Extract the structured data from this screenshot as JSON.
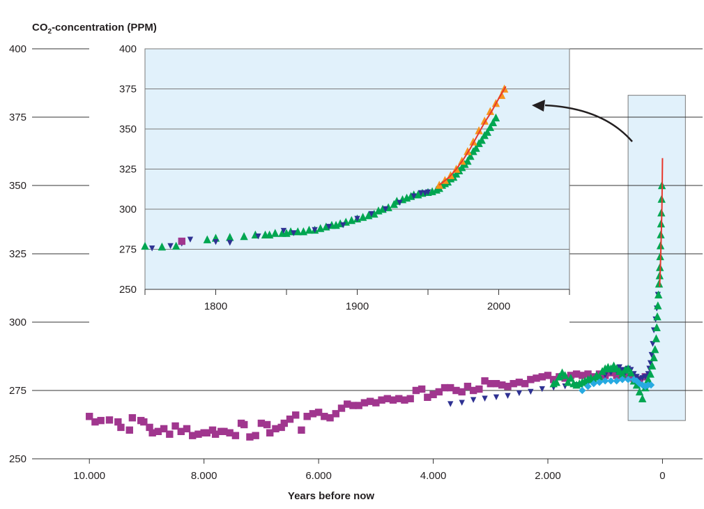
{
  "chart_data": [
    {
      "id": "main",
      "type": "scatter",
      "title_prefix": "CO",
      "title_sub": "2",
      "title_suffix": "-concentration (PPM)",
      "xlabel": "Years before now",
      "xlim": [
        11000,
        -700
      ],
      "ylim": [
        250,
        400
      ],
      "x_ticks": [
        10000,
        8000,
        6000,
        4000,
        2000,
        0
      ],
      "x_tick_labels": [
        "10.000",
        "8.000",
        "6.000",
        "4.000",
        "2.000",
        "0"
      ],
      "y_ticks": [
        250,
        275,
        300,
        325,
        350,
        375,
        400
      ],
      "grid": true,
      "highlight_region": {
        "x": [
          600,
          -400
        ],
        "y": [
          264,
          383
        ]
      },
      "series": [
        {
          "marker": "square",
          "color": "#a0368e",
          "x": [
            10000,
            9900,
            9800,
            9650,
            9500,
            9450,
            9300,
            9250,
            9100,
            9050,
            8950,
            8900,
            8800,
            8700,
            8600,
            8500,
            8400,
            8300,
            8200,
            8100,
            8000,
            7950,
            7850,
            7800,
            7700,
            7650,
            7550,
            7450,
            7350,
            7300,
            7200,
            7100,
            7000,
            6900,
            6850,
            6750,
            6650,
            6600,
            6500,
            6400,
            6300,
            6200,
            6100,
            6000,
            5900,
            5800,
            5700,
            5600,
            5500,
            5400,
            5300,
            5200,
            5100,
            5000,
            4900,
            4800,
            4700,
            4600,
            4500,
            4400,
            4300,
            4200,
            4100,
            4000,
            3900,
            3800,
            3700,
            3600,
            3500,
            3400,
            3300,
            3200,
            3100,
            3000,
            2900,
            2800,
            2700,
            2600,
            2500,
            2400,
            2300,
            2200,
            2100,
            2000,
            1900,
            1800,
            1700,
            1600,
            1500,
            1400,
            1300,
            1200,
            1100,
            1000,
            900,
            800,
            700,
            600,
            500,
            400,
            300
          ],
          "y": [
            265.5,
            263.5,
            264,
            264.2,
            263.5,
            261.5,
            260.5,
            265,
            264,
            263.5,
            261.5,
            259.5,
            260,
            261,
            259,
            262,
            260,
            261,
            258.5,
            259,
            259.5,
            259.5,
            260.5,
            259,
            260,
            260,
            259.5,
            258.5,
            263,
            262.5,
            258,
            258.5,
            263,
            262.5,
            259.5,
            261,
            261.5,
            263,
            264.5,
            266,
            260.5,
            265.5,
            266.5,
            267,
            265.5,
            265,
            266.5,
            268.5,
            270,
            269.5,
            269.5,
            270.5,
            271,
            270.5,
            271.5,
            272,
            271.5,
            272,
            271.5,
            272,
            275,
            275.5,
            272.5,
            273.5,
            274.5,
            276,
            276,
            275,
            274.5,
            276.5,
            275,
            275.5,
            278.5,
            277.5,
            277.5,
            277,
            276.5,
            277.5,
            278,
            277.5,
            279,
            279.5,
            280,
            280.5,
            279,
            280,
            279.5,
            280.5,
            281,
            280.5,
            281,
            280,
            281,
            280.5,
            281.5,
            280.5,
            281.5,
            280,
            279.5,
            279,
            280
          ]
        },
        {
          "marker": "triangle-down",
          "color": "#2e3192",
          "x": [
            3700,
            3500,
            3300,
            3100,
            2900,
            2700,
            2500,
            2300,
            2100,
            1900,
            1700,
            1500,
            1300,
            1200,
            1100,
            1000,
            900,
            850,
            800,
            750,
            700,
            650,
            600,
            550,
            500,
            450,
            400,
            350,
            300,
            250,
            230,
            210,
            190,
            170,
            150,
            120,
            100,
            80
          ],
          "y": [
            270,
            270.5,
            271.5,
            272,
            272.5,
            273,
            274,
            274.5,
            275.5,
            276,
            276.5,
            277,
            277.5,
            278.5,
            279,
            280.5,
            281.5,
            283,
            282,
            283.5,
            282.5,
            281.5,
            283,
            282.5,
            281,
            280,
            279,
            279.5,
            280,
            281,
            283,
            285,
            288,
            292,
            297,
            301,
            305,
            310
          ]
        },
        {
          "marker": "triangle-up",
          "color": "#00a651",
          "x": [
            1900,
            1850,
            1800,
            1750,
            1700,
            1650,
            1600,
            1550,
            1500,
            1450,
            1400,
            1350,
            1300,
            1250,
            1200,
            1150,
            1100,
            1050,
            1000,
            950,
            900,
            850,
            800,
            750,
            700,
            650,
            600,
            550,
            500,
            450,
            400,
            350,
            300,
            250,
            210,
            180,
            150,
            130,
            110,
            100,
            90,
            80,
            70,
            60,
            50,
            45,
            40,
            35,
            30,
            25,
            20,
            15,
            10
          ],
          "y": [
            277.5,
            278,
            280,
            281.5,
            280.5,
            278,
            279.5,
            277.5,
            277,
            277.5,
            278,
            278.5,
            279,
            279.5,
            279,
            280.5,
            280,
            282,
            283,
            283.5,
            283,
            284,
            283,
            282,
            281,
            282.5,
            283,
            281.5,
            278.5,
            277,
            274.5,
            272,
            276,
            279,
            281,
            284,
            287,
            290,
            294,
            298,
            302,
            306,
            310,
            314,
            317,
            320,
            324,
            328,
            332,
            336,
            340,
            345,
            350
          ]
        },
        {
          "marker": "diamond",
          "color": "#27aae1",
          "x": [
            1400,
            1300,
            1200,
            1100,
            1000,
            900,
            800,
            700,
            600,
            500,
            450,
            400,
            350,
            300,
            250,
            200
          ],
          "y": [
            275,
            276.5,
            277.5,
            278,
            278.5,
            278.5,
            278.5,
            279,
            279,
            279,
            278.5,
            277.5,
            277,
            276.5,
            277,
            277
          ]
        },
        {
          "marker": "line",
          "color": "#e8382c",
          "x": [
            50,
            40,
            30,
            20,
            10,
            5,
            0
          ],
          "y": [
            313,
            318,
            325,
            333,
            342,
            350,
            360
          ]
        }
      ]
    },
    {
      "id": "inset",
      "type": "scatter",
      "xlim": [
        1750,
        2050
      ],
      "ylim": [
        250,
        400
      ],
      "x_ticks": [
        1800,
        1900,
        2000
      ],
      "x_minor_ticks": [
        1750,
        1850,
        1950,
        2050
      ],
      "y_ticks": [
        250,
        275,
        300,
        325,
        350,
        375,
        400
      ],
      "grid": true,
      "series": [
        {
          "marker": "triangle-up",
          "color": "#00a651",
          "x": [
            1750,
            1762,
            1772,
            1794,
            1800,
            1810,
            1820,
            1828,
            1835,
            1838,
            1842,
            1847,
            1850,
            1853,
            1858,
            1862,
            1866,
            1870,
            1874,
            1878,
            1882,
            1885,
            1888,
            1892,
            1896,
            1900,
            1904,
            1908,
            1912,
            1915,
            1918,
            1922,
            1926,
            1928,
            1932,
            1935,
            1938,
            1940,
            1943,
            1946,
            1950,
            1953,
            1956,
            1958,
            1960,
            1962,
            1964,
            1966,
            1968,
            1970,
            1972,
            1974,
            1976,
            1978,
            1980,
            1982,
            1984,
            1986,
            1988,
            1990,
            1992,
            1994,
            1996,
            1998
          ],
          "y": [
            277,
            276.5,
            277,
            281,
            282,
            282.5,
            283,
            284,
            284,
            284,
            285,
            285,
            285,
            286,
            286,
            286,
            287,
            287,
            288,
            289,
            290,
            290,
            291,
            292,
            293,
            294,
            295,
            296,
            297,
            299,
            300,
            301,
            303,
            305,
            306,
            307,
            308,
            309,
            309,
            310,
            310.5,
            311,
            312,
            313,
            315,
            316,
            317,
            319,
            320,
            322,
            324,
            326,
            328,
            330,
            333,
            336,
            338,
            341,
            343,
            346,
            348,
            351,
            354,
            357
          ]
        },
        {
          "marker": "triangle-down",
          "color": "#2e3192",
          "x": [
            1755,
            1768,
            1776,
            1782,
            1800,
            1810,
            1830,
            1848,
            1855,
            1870,
            1880,
            1890,
            1900,
            1910,
            1920,
            1930,
            1940,
            1945,
            1948,
            1950
          ],
          "y": [
            275.5,
            277,
            278.5,
            281,
            279.5,
            279,
            283,
            286.5,
            285,
            287,
            289,
            290,
            294,
            297,
            300,
            304,
            308,
            310,
            310,
            310.5
          ]
        },
        {
          "marker": "square",
          "color": "#a0368e",
          "x": [
            1776
          ],
          "y": [
            280
          ]
        },
        {
          "marker": "triangle-up",
          "color": "#f7941d",
          "x": [
            1958,
            1962,
            1966,
            1970,
            1974,
            1978,
            1982,
            1986,
            1990,
            1994,
            1998,
            2002,
            2004
          ],
          "y": [
            315,
            318,
            321,
            325,
            330,
            336,
            342,
            349,
            355,
            361,
            366,
            371,
            375
          ]
        },
        {
          "marker": "line",
          "color": "#e8382c",
          "x": [
            1958,
            1965,
            1970,
            1975,
            1980,
            1985,
            1990,
            1995,
            2000,
            2005
          ],
          "y": [
            315,
            320,
            325,
            331,
            338,
            346,
            354,
            361,
            369,
            376.5
          ]
        }
      ]
    }
  ]
}
